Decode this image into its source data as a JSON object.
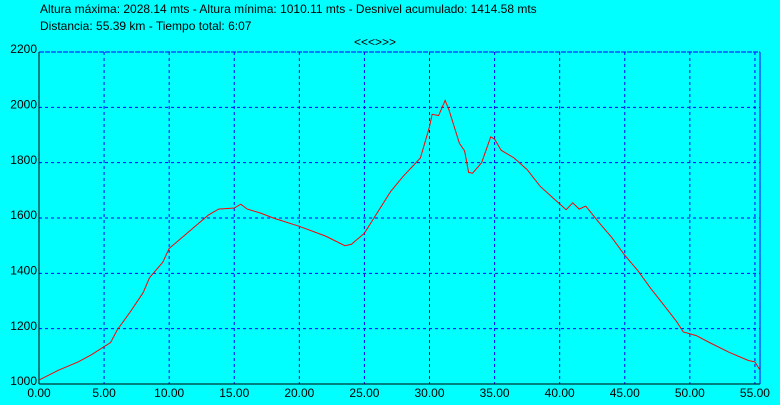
{
  "chart_data": {
    "type": "line",
    "title": "Altura máxima: 2028.14 mts - Altura mínima: 1010.11 mts - Desnivel acumulado: 1414.58 mts",
    "subtitle": "Distancia: 55.39 km - Tiempo total: 6:07",
    "nav": "<<<>>>",
    "xlim": [
      0,
      55.39
    ],
    "ylim": [
      1000,
      2200
    ],
    "xticks": [
      {
        "value": 0,
        "label": "0.00"
      },
      {
        "value": 5,
        "label": "5.00"
      },
      {
        "value": 10,
        "label": "10.00"
      },
      {
        "value": 15,
        "label": "15.00"
      },
      {
        "value": 20,
        "label": "20.00"
      },
      {
        "value": 25,
        "label": "25.00"
      },
      {
        "value": 30,
        "label": "30.00"
      },
      {
        "value": 35,
        "label": "35.00"
      },
      {
        "value": 40,
        "label": "40.00"
      },
      {
        "value": 45,
        "label": "45.00"
      },
      {
        "value": 50,
        "label": "50.00"
      },
      {
        "value": 55,
        "label": "55.00"
      }
    ],
    "yticks": [
      1000,
      1200,
      1400,
      1600,
      1800,
      2000,
      2200
    ],
    "grid": true,
    "series": [
      {
        "color": "#ff0000",
        "x": [
          0,
          1.5,
          3,
          4,
          5.5,
          6,
          7,
          8,
          8.5,
          9.5,
          10,
          11,
          12,
          13,
          13.8,
          15,
          15.5,
          16,
          17,
          18,
          20,
          22,
          23.5,
          24,
          25,
          26,
          27,
          28,
          29.3,
          30,
          30.2,
          30.7,
          31.2,
          31.5,
          32.3,
          32.7,
          33,
          33.3,
          34,
          34.7,
          35,
          35.5,
          36.5,
          37.5,
          38.5,
          39.5,
          40.5,
          41,
          41.5,
          42,
          43,
          44,
          45,
          46,
          47,
          48,
          49,
          49.5,
          50.5,
          51.5,
          53,
          54.5,
          55,
          55.39
        ],
        "values": [
          1014,
          1050,
          1080,
          1105,
          1150,
          1195,
          1260,
          1330,
          1385,
          1440,
          1490,
          1530,
          1570,
          1610,
          1632,
          1636,
          1650,
          1632,
          1618,
          1600,
          1570,
          1535,
          1500,
          1505,
          1545,
          1620,
          1695,
          1752,
          1817,
          1930,
          1975,
          1970,
          2025,
          1990,
          1870,
          1842,
          1765,
          1762,
          1800,
          1893,
          1885,
          1845,
          1817,
          1775,
          1715,
          1672,
          1630,
          1655,
          1632,
          1643,
          1585,
          1530,
          1465,
          1410,
          1345,
          1285,
          1225,
          1188,
          1175,
          1150,
          1115,
          1085,
          1080,
          1050
        ]
      }
    ]
  }
}
